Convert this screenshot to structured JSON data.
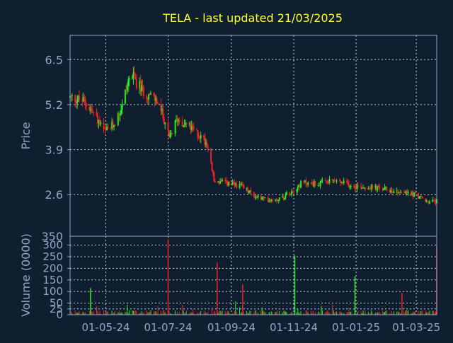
{
  "colors": {
    "background": "#0f1f2f",
    "title": "#ffff33",
    "axis_text": "#8fa8c8",
    "frame": "#8fa8c8",
    "grid": "#c8d0dc",
    "up": "#22ee22",
    "down": "#ee2222"
  },
  "chart_data": [
    {
      "type": "candlestick",
      "title": "TELA - last updated 21/03/2025",
      "ylabel": "Price",
      "ylim": [
        1.4,
        7.2
      ],
      "yticks": [
        6.5,
        5.2,
        3.9,
        2.6
      ],
      "x_tick_labels": [
        "01-05-24",
        "01-07-24",
        "01-09-24",
        "01-11-24",
        "01-01-25",
        "01-03-25"
      ],
      "grid": true,
      "approx_price_path": {
        "dates": [
          "2024-03-27",
          "2024-04-10",
          "2024-04-20",
          "2024-04-30",
          "2024-05-08",
          "2024-05-15",
          "2024-05-25",
          "2024-06-06",
          "2024-06-20",
          "2024-06-28",
          "2024-07-02",
          "2024-07-10",
          "2024-07-20",
          "2024-08-01",
          "2024-08-08",
          "2024-08-15",
          "2024-09-10",
          "2024-09-24",
          "2024-10-05",
          "2024-10-20",
          "2024-11-10",
          "2024-11-25",
          "2024-12-10",
          "2024-12-31",
          "2025-01-20",
          "2025-02-10",
          "2025-03-01",
          "2025-03-10",
          "2025-03-21"
        ],
        "prices": [
          5.4,
          5.3,
          4.9,
          4.4,
          4.6,
          5.0,
          6.1,
          5.6,
          5.3,
          4.7,
          4.2,
          4.8,
          4.6,
          4.3,
          4.1,
          3.0,
          2.85,
          2.55,
          2.45,
          2.5,
          2.95,
          2.9,
          3.0,
          2.85,
          2.8,
          2.7,
          2.6,
          2.4,
          2.4
        ]
      }
    },
    {
      "type": "bar",
      "ylabel": "Volume (0000)",
      "ylim": [
        0,
        320
      ],
      "yticks": [
        0,
        25,
        50,
        100,
        150,
        200,
        250,
        300
      ],
      "x_tick_labels": [
        "01-05-24",
        "01-07-24",
        "01-09-24",
        "01-11-24",
        "01-01-25",
        "01-03-25"
      ],
      "grid": true,
      "spikes": [
        {
          "date": "2024-07-01",
          "value": 325,
          "direction": "down"
        },
        {
          "date": "2024-08-18",
          "value": 225,
          "direction": "down"
        },
        {
          "date": "2024-11-02",
          "value": 255,
          "direction": "up"
        },
        {
          "date": "2024-12-31",
          "value": 165,
          "direction": "up"
        },
        {
          "date": "2025-03-21",
          "value": 295,
          "direction": "down"
        },
        {
          "date": "2024-09-12",
          "value": 130,
          "direction": "down"
        },
        {
          "date": "2024-04-16",
          "value": 115,
          "direction": "up"
        },
        {
          "date": "2025-02-15",
          "value": 95,
          "direction": "down"
        }
      ]
    }
  ]
}
